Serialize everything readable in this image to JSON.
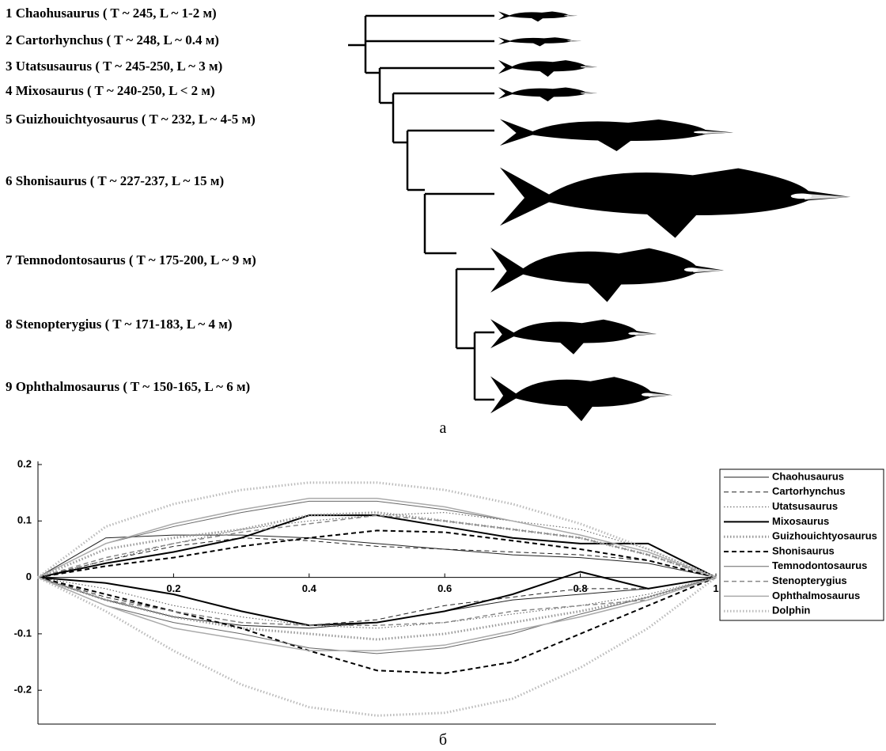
{
  "taxa": [
    "1 Chaohusaurus ( T ~ 245, L ~ 1-2 м)",
    "2 Cartorhynchus ( T ~ 248, L ~ 0.4 м)",
    "3 Utatsusaurus ( T ~ 245-250, L ~ 3 м)",
    "4 Mixosaurus ( T ~ 240-250, L < 2 м)",
    "5 Guizhouichtyosaurus  ( T ~ 232, L ~ 4-5 м)",
    "6 Shonisaurus  ( T ~ 227-237, L ~ 15 м)",
    "7 Temnodontosaurus  ( T ~ 175-200, L ~ 9 м)",
    "8 Stenopterygius  ( T ~ 171-183, L ~ 4 м)",
    "9 Ophthalmosaurus  ( T ~ 150-165, L ~ 6 м)"
  ],
  "caption_a": "а",
  "caption_b": "б",
  "chart_data": {
    "type": "line",
    "x": [
      0,
      0.1,
      0.2,
      0.3,
      0.4,
      0.5,
      0.6,
      0.7,
      0.8,
      0.9,
      1
    ],
    "xlim": [
      0,
      1
    ],
    "xticks": [
      0.2,
      0.4,
      0.6,
      0.8,
      1
    ],
    "ylim": [
      -0.26,
      0.2
    ],
    "yticks": [
      -0.2,
      -0.1,
      0,
      0.1,
      0.2
    ],
    "legend": "right",
    "series": [
      {
        "name": "Chaohusaurus",
        "color": "#222222",
        "dash": "solid",
        "width": 1,
        "upper": [
          0,
          0.07,
          0.075,
          0.075,
          0.07,
          0.06,
          0.05,
          0.04,
          0.035,
          0.025,
          0
        ],
        "lower": [
          0,
          -0.04,
          -0.07,
          -0.085,
          -0.09,
          -0.08,
          -0.06,
          -0.04,
          -0.03,
          -0.02,
          0
        ]
      },
      {
        "name": "Cartorhynchus",
        "color": "#222222",
        "dash": "dashed",
        "width": 1,
        "upper": [
          0,
          0.03,
          0.055,
          0.07,
          0.065,
          0.055,
          0.05,
          0.045,
          0.04,
          0.03,
          0
        ],
        "lower": [
          0,
          -0.035,
          -0.06,
          -0.08,
          -0.085,
          -0.075,
          -0.05,
          -0.035,
          -0.02,
          -0.02,
          0
        ]
      },
      {
        "name": "Utatsusaurus",
        "color": "#555555",
        "dash": "dotted",
        "width": 1,
        "upper": [
          0,
          0.03,
          0.06,
          0.085,
          0.1,
          0.11,
          0.115,
          0.1,
          0.085,
          0.05,
          0
        ],
        "lower": [
          0,
          -0.02,
          -0.05,
          -0.07,
          -0.085,
          -0.09,
          -0.08,
          -0.065,
          -0.05,
          -0.03,
          0
        ]
      },
      {
        "name": "Mixosaurus",
        "color": "#000000",
        "dash": "solid",
        "width": 2,
        "upper": [
          0,
          0.025,
          0.045,
          0.07,
          0.11,
          0.11,
          0.09,
          0.07,
          0.06,
          0.06,
          0
        ],
        "lower": [
          0,
          -0.01,
          -0.03,
          -0.06,
          -0.085,
          -0.08,
          -0.06,
          -0.03,
          0.01,
          -0.02,
          0
        ]
      },
      {
        "name": "Guizhouichtyosaurus",
        "color": "#999999",
        "dash": "dotted",
        "width": 3,
        "upper": [
          0,
          0.05,
          0.07,
          0.085,
          0.11,
          0.115,
          0.1,
          0.085,
          0.07,
          0.04,
          0
        ],
        "lower": [
          0,
          -0.04,
          -0.07,
          -0.09,
          -0.1,
          -0.11,
          -0.1,
          -0.08,
          -0.06,
          -0.035,
          0
        ]
      },
      {
        "name": "Shonisaurus",
        "color": "#000000",
        "dash": "dashed",
        "width": 2,
        "upper": [
          0,
          0.02,
          0.035,
          0.055,
          0.07,
          0.083,
          0.08,
          0.065,
          0.05,
          0.03,
          0
        ],
        "lower": [
          0,
          -0.03,
          -0.06,
          -0.09,
          -0.13,
          -0.165,
          -0.17,
          -0.15,
          -0.1,
          -0.05,
          0
        ]
      },
      {
        "name": "Temnodontosaurus",
        "color": "#666666",
        "dash": "solid",
        "width": 1,
        "upper": [
          0,
          0.06,
          0.09,
          0.115,
          0.135,
          0.135,
          0.12,
          0.1,
          0.075,
          0.045,
          0
        ],
        "lower": [
          0,
          -0.05,
          -0.08,
          -0.1,
          -0.125,
          -0.135,
          -0.125,
          -0.1,
          -0.065,
          -0.035,
          0
        ]
      },
      {
        "name": "Stenopterygius",
        "color": "#888888",
        "dash": "dashed",
        "width": 1.5,
        "upper": [
          0,
          0.035,
          0.06,
          0.08,
          0.095,
          0.11,
          0.1,
          0.085,
          0.07,
          0.04,
          0
        ],
        "lower": [
          0,
          -0.04,
          -0.06,
          -0.08,
          -0.085,
          -0.085,
          -0.08,
          -0.06,
          -0.05,
          -0.04,
          0
        ]
      },
      {
        "name": "Ophthalmosaurus",
        "color": "#aaaaaa",
        "dash": "solid",
        "width": 1.5,
        "upper": [
          0,
          0.06,
          0.095,
          0.12,
          0.14,
          0.14,
          0.125,
          0.1,
          0.075,
          0.045,
          0
        ],
        "lower": [
          0,
          -0.05,
          -0.09,
          -0.11,
          -0.13,
          -0.13,
          -0.12,
          -0.095,
          -0.07,
          -0.04,
          0
        ]
      },
      {
        "name": "Dolphin",
        "color": "#bbbbbb",
        "dash": "dotted",
        "width": 3,
        "upper": [
          0,
          0.09,
          0.13,
          0.155,
          0.168,
          0.168,
          0.155,
          0.13,
          0.095,
          0.05,
          0
        ],
        "lower": [
          0,
          -0.06,
          -0.13,
          -0.19,
          -0.23,
          -0.245,
          -0.24,
          -0.215,
          -0.16,
          -0.09,
          0
        ]
      }
    ]
  }
}
